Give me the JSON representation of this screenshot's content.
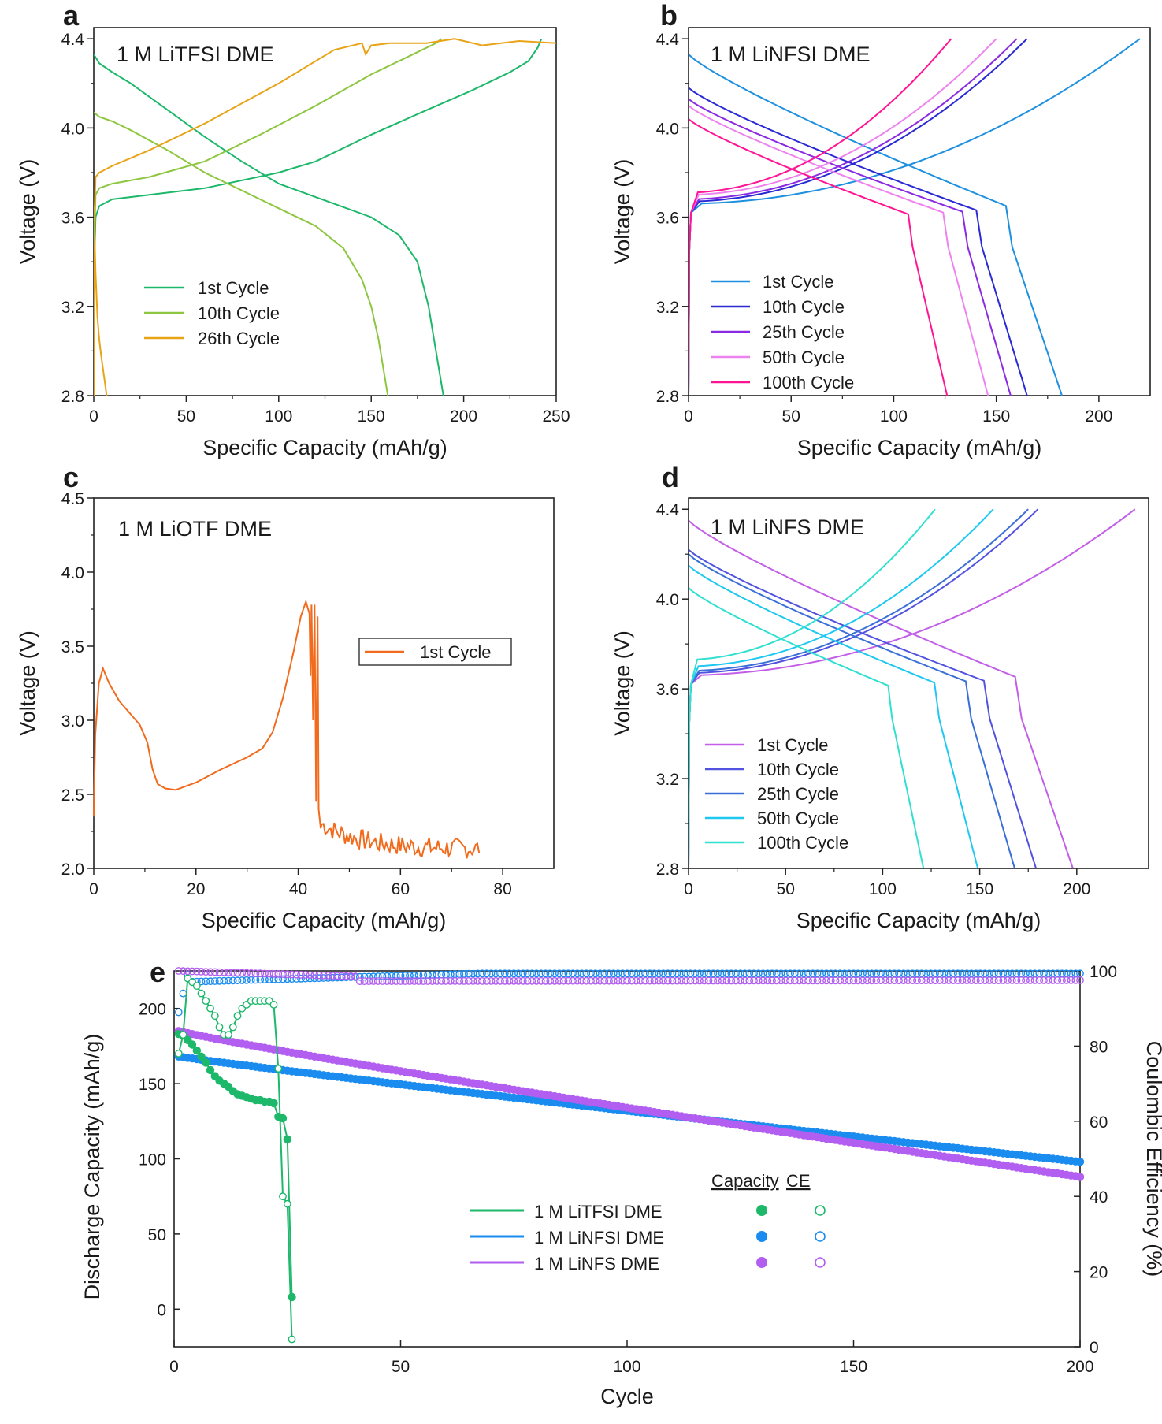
{
  "chart_data": [
    {
      "id": "a",
      "type": "line",
      "panel_label": "a",
      "title": "1 M LiTFSI DME",
      "xlabel": "Specific Capacity (mAh/g)",
      "ylabel": "Voltage (V)",
      "xlim": [
        0,
        250
      ],
      "ylim": [
        2.8,
        4.45
      ],
      "xticks": [
        0,
        50,
        100,
        150,
        200,
        250
      ],
      "yticks": [
        2.8,
        3.2,
        3.6,
        4.0,
        4.4
      ],
      "ytick_labels": [
        "2.8",
        "3.2",
        "3.6",
        "4.0",
        "4.4"
      ],
      "legend": "center-left",
      "series": [
        {
          "name": "1st Cycle",
          "color": "#1db86a",
          "charge": {
            "x": [
              0,
              0.3,
              1,
              3,
              10,
              30,
              60,
              100,
              120,
              150,
              180,
              205,
              225,
              235,
              240,
              242
            ],
            "y": [
              2.8,
              3.4,
              3.6,
              3.65,
              3.68,
              3.7,
              3.73,
              3.8,
              3.85,
              3.97,
              4.08,
              4.17,
              4.25,
              4.3,
              4.36,
              4.4
            ]
          },
          "discharge": {
            "x": [
              0,
              3,
              10,
              20,
              40,
              60,
              80,
              100,
              130,
              150,
              165,
              175,
              178,
              181,
              184,
              187,
              189
            ],
            "y": [
              4.33,
              4.29,
              4.25,
              4.2,
              4.08,
              3.96,
              3.85,
              3.75,
              3.66,
              3.6,
              3.52,
              3.4,
              3.3,
              3.2,
              3.05,
              2.9,
              2.8
            ]
          }
        },
        {
          "name": "10th Cycle",
          "color": "#8dc63f",
          "charge": {
            "x": [
              0,
              0.3,
              1,
              3,
              10,
              30,
              60,
              90,
              120,
              150,
              170,
              185,
              188
            ],
            "y": [
              2.8,
              3.5,
              3.7,
              3.73,
              3.75,
              3.78,
              3.85,
              3.97,
              4.1,
              4.24,
              4.32,
              4.38,
              4.4
            ]
          },
          "discharge": {
            "x": [
              0,
              3,
              10,
              20,
              40,
              60,
              80,
              100,
              120,
              135,
              145,
              150,
              154,
              157,
              159
            ],
            "y": [
              4.07,
              4.05,
              4.03,
              3.99,
              3.9,
              3.8,
              3.72,
              3.64,
              3.56,
              3.46,
              3.32,
              3.2,
              3.05,
              2.9,
              2.8
            ]
          }
        },
        {
          "name": "26th Cycle",
          "color": "#e8a317",
          "charge": {
            "x": [
              0,
              0.3,
              1,
              3,
              10,
              30,
              60,
              100,
              130,
              145,
              147,
              150,
              160,
              180,
              195,
              210,
              230,
              250
            ],
            "y": [
              2.8,
              3.6,
              3.78,
              3.8,
              3.83,
              3.9,
              4.02,
              4.2,
              4.35,
              4.38,
              4.33,
              4.37,
              4.38,
              4.38,
              4.4,
              4.37,
              4.39,
              4.38
            ]
          },
          "discharge": {
            "x": [
              0,
              1,
              2,
              3,
              4,
              5,
              6,
              7
            ],
            "y": [
              3.65,
              3.35,
              3.15,
              3.05,
              2.98,
              2.92,
              2.86,
              2.8
            ]
          }
        }
      ]
    },
    {
      "id": "b",
      "type": "line",
      "panel_label": "b",
      "title": "1 M LiNFSI DME",
      "xlabel": "Specific Capacity (mAh/g)",
      "ylabel": "Voltage (V)",
      "xlim": [
        0,
        225
      ],
      "ylim": [
        2.8,
        4.45
      ],
      "xticks": [
        0,
        50,
        100,
        150,
        200
      ],
      "yticks": [
        2.8,
        3.2,
        3.6,
        4.0,
        4.4
      ],
      "ytick_labels": [
        "2.8",
        "3.2",
        "3.6",
        "4.0",
        "4.4"
      ],
      "legend": "bottom-left",
      "series": [
        {
          "name": "1st Cycle",
          "color": "#1e90e0",
          "cap": 182,
          "charge_cap": 220,
          "v0": 4.33,
          "c0": 3.66
        },
        {
          "name": "10th Cycle",
          "color": "#2a2ad4",
          "cap": 165,
          "charge_cap": 165,
          "v0": 4.18,
          "c0": 3.67
        },
        {
          "name": "25th Cycle",
          "color": "#8a2be2",
          "cap": 157,
          "charge_cap": 160,
          "v0": 4.13,
          "c0": 3.68
        },
        {
          "name": "50th Cycle",
          "color": "#ee82ee",
          "cap": 146,
          "charge_cap": 150,
          "v0": 4.1,
          "c0": 3.7
        },
        {
          "name": "100th Cycle",
          "color": "#ff1493",
          "cap": 126,
          "charge_cap": 128,
          "v0": 4.04,
          "c0": 3.71
        }
      ]
    },
    {
      "id": "c",
      "type": "line",
      "panel_label": "c",
      "title": "1 M LiOTF DME",
      "xlabel": "Specific Capacity (mAh/g)",
      "ylabel": "Voltage (V)",
      "xlim": [
        0,
        90
      ],
      "ylim": [
        2.0,
        4.5
      ],
      "xticks": [
        0,
        20,
        40,
        60,
        80
      ],
      "yticks": [
        2.0,
        2.5,
        3.0,
        3.5,
        4.0,
        4.5
      ],
      "ytick_labels": [
        "2.0",
        "2.5",
        "3.0",
        "3.5",
        "4.0",
        "4.5"
      ],
      "legend": "center-right",
      "series": [
        {
          "name": "1st Cycle",
          "color": "#f26b1d",
          "x": [
            0,
            0.3,
            1,
            1.8,
            3,
            5,
            7,
            9,
            10.5,
            11.5,
            12.5,
            14,
            16,
            20,
            25,
            30,
            33,
            35,
            37,
            39,
            40.5,
            41.5,
            42.2
          ],
          "y": [
            2.35,
            2.9,
            3.25,
            3.35,
            3.25,
            3.13,
            3.05,
            2.97,
            2.85,
            2.67,
            2.57,
            2.54,
            2.53,
            2.58,
            2.67,
            2.75,
            2.81,
            2.92,
            3.15,
            3.45,
            3.7,
            3.8,
            3.72
          ],
          "tail_x_end": 75.5,
          "tail_y_end": 2.13
        }
      ]
    },
    {
      "id": "d",
      "type": "line",
      "panel_label": "d",
      "title": "1 M LiNFS DME",
      "xlabel": "Specific Capacity (mAh/g)",
      "ylabel": "Voltage (V)",
      "xlim": [
        0,
        237
      ],
      "ylim": [
        2.8,
        4.45
      ],
      "xticks": [
        0,
        50,
        100,
        150,
        200
      ],
      "yticks": [
        2.8,
        3.2,
        3.6,
        4.0,
        4.4
      ],
      "ytick_labels": [
        "2.8",
        "3.2",
        "3.6",
        "4.0",
        "4.4"
      ],
      "legend": "bottom-left",
      "series": [
        {
          "name": "1st Cycle",
          "color": "#c25ee8",
          "cap": 198,
          "charge_cap": 230,
          "v0": 4.35,
          "c0": 3.66
        },
        {
          "name": "10th Cycle",
          "color": "#5252e0",
          "cap": 179,
          "charge_cap": 180,
          "v0": 4.22,
          "c0": 3.67
        },
        {
          "name": "25th Cycle",
          "color": "#3a6fd8",
          "cap": 168,
          "charge_cap": 175,
          "v0": 4.2,
          "c0": 3.68
        },
        {
          "name": "50th Cycle",
          "color": "#1ec8f0",
          "cap": 149,
          "charge_cap": 157,
          "v0": 4.15,
          "c0": 3.7
        },
        {
          "name": "100th Cycle",
          "color": "#30e0d0",
          "cap": 121,
          "charge_cap": 127,
          "v0": 4.05,
          "c0": 3.73
        }
      ]
    },
    {
      "id": "e",
      "type": "scatter",
      "panel_label": "e",
      "xlabel": "Cycle",
      "ylabel": "Discharge Capacity (mAh/g)",
      "y2label": "Coulombic Efficiency (%)",
      "xlim": [
        0,
        200
      ],
      "ylim": [
        -25,
        225
      ],
      "y2lim": [
        0,
        100
      ],
      "xticks": [
        0,
        50,
        100,
        150,
        200
      ],
      "yticks": [
        0,
        50,
        100,
        150,
        200
      ],
      "y2ticks": [
        0,
        20,
        40,
        60,
        80,
        100
      ],
      "legend": "center",
      "legend_header": {
        "capacity": "Capacity",
        "ce": "CE"
      },
      "series": [
        {
          "name": "1 M LiTFSI DME",
          "color": "#1db86a",
          "cycles": [
            1,
            2,
            3,
            4,
            5,
            6,
            7,
            8,
            9,
            10,
            11,
            12,
            13,
            14,
            15,
            16,
            17,
            18,
            19,
            20,
            21,
            22,
            23,
            24,
            25,
            26
          ],
          "capacity": [
            183,
            182,
            179,
            176,
            172,
            168,
            164,
            159,
            155,
            152,
            150,
            148,
            145,
            143,
            142,
            141,
            140,
            139,
            139,
            138,
            138,
            137,
            128,
            127,
            113,
            8
          ],
          "ce": [
            78,
            83,
            98,
            97,
            96,
            94,
            92,
            90,
            88,
            85,
            83,
            83,
            85,
            88,
            90,
            91,
            92,
            92,
            92,
            92,
            92,
            91,
            74,
            40,
            38,
            2
          ]
        },
        {
          "name": "1 M LiNFSI DME",
          "color": "#1a8cf0",
          "capacity_start": 168,
          "capacity_end": 98,
          "ce_start": 97,
          "ce_end": 99.3,
          "cycles_total": 200
        },
        {
          "name": "1 M LiNFS DME",
          "color": "#b25ef0",
          "capacity_start": 185,
          "capacity_end": 88,
          "ce_start": 100,
          "ce_end": 97.5,
          "cycles_total": 200
        }
      ]
    }
  ]
}
